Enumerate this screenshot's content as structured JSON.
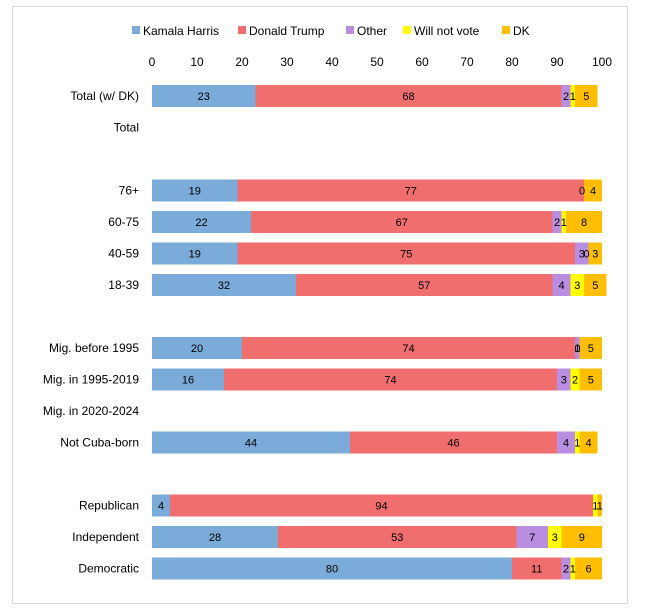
{
  "chart_data": {
    "type": "bar",
    "orientation": "horizontal",
    "stacked": true,
    "title": "",
    "xlabel": "",
    "ylabel": "",
    "xlim": [
      0,
      100
    ],
    "x_ticks": [
      "0",
      "10",
      "20",
      "30",
      "40",
      "50",
      "60",
      "70",
      "80",
      "90",
      "100"
    ],
    "legend_position": "top",
    "series": [
      {
        "name": "Kamala Harris",
        "color": "#7aabd9"
      },
      {
        "name": "Donald Trump",
        "color": "#f06e6e"
      },
      {
        "name": "Other",
        "color": "#b98de0"
      },
      {
        "name": "Will not vote",
        "color": "#ffff00"
      },
      {
        "name": "DK",
        "color": "#ffbf00"
      }
    ],
    "rows": [
      {
        "category": "Total (w/ DK)",
        "values": [
          23,
          68,
          2,
          1,
          5
        ],
        "labels": [
          "23",
          "68",
          "2",
          "1",
          "5"
        ]
      },
      {
        "category": "Total",
        "values": null
      },
      {
        "category": "",
        "values": null
      },
      {
        "category": "76+",
        "values": [
          19,
          77,
          0,
          0,
          4
        ],
        "labels": [
          "19",
          "77",
          "",
          "0",
          "4"
        ]
      },
      {
        "category": "60-75",
        "values": [
          22,
          67,
          2,
          1,
          8
        ],
        "labels": [
          "22",
          "67",
          "2",
          "1",
          "8"
        ]
      },
      {
        "category": "40-59",
        "values": [
          19,
          75,
          3,
          0,
          3
        ],
        "labels": [
          "19",
          "75",
          "3",
          "0",
          "3"
        ]
      },
      {
        "category": "18-39",
        "values": [
          32,
          57,
          4,
          3,
          5
        ],
        "labels": [
          "32",
          "57",
          "4",
          "3",
          "5"
        ]
      },
      {
        "category": "",
        "values": null
      },
      {
        "category": "Mig. before 1995",
        "values": [
          20,
          74,
          1,
          0,
          5
        ],
        "labels": [
          "20",
          "74",
          "1",
          "0",
          "5"
        ]
      },
      {
        "category": "Mig. in 1995-2019",
        "values": [
          16,
          74,
          3,
          2,
          5
        ],
        "labels": [
          "16",
          "74",
          "3",
          "2",
          "5"
        ]
      },
      {
        "category": "Mig. in 2020-2024",
        "values": null
      },
      {
        "category": "Not Cuba-born",
        "values": [
          44,
          46,
          4,
          1,
          4
        ],
        "labels": [
          "44",
          "46",
          "4",
          "1",
          "4"
        ]
      },
      {
        "category": "",
        "values": null
      },
      {
        "category": "Republican",
        "values": [
          4,
          94,
          0,
          1,
          1
        ],
        "labels": [
          "4",
          "94",
          "",
          "1",
          "1"
        ]
      },
      {
        "category": "Independent",
        "values": [
          28,
          53,
          7,
          3,
          9
        ],
        "labels": [
          "28",
          "53",
          "7",
          "3",
          "9"
        ]
      },
      {
        "category": "Democratic",
        "values": [
          80,
          11,
          2,
          1,
          6
        ],
        "labels": [
          "80",
          "11",
          "2",
          "1",
          "6"
        ]
      }
    ]
  }
}
